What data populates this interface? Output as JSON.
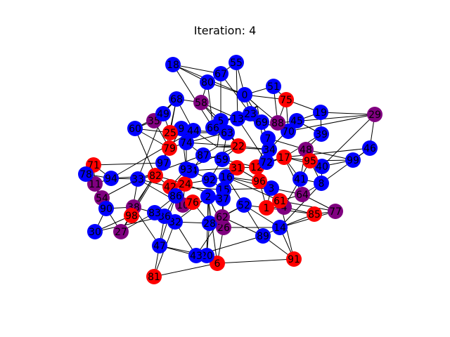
{
  "title": "Iteration: 4",
  "colors": {
    "blue": "#0000ff",
    "red": "#ff0000",
    "purple": "#800080",
    "edge": "#000000",
    "label": "#000000"
  },
  "nodes": [
    {
      "id": "0",
      "color": "blue"
    },
    {
      "id": "1",
      "color": "red"
    },
    {
      "id": "2",
      "color": "blue"
    },
    {
      "id": "3",
      "color": "blue"
    },
    {
      "id": "4",
      "color": "purple"
    },
    {
      "id": "5",
      "color": "blue"
    },
    {
      "id": "6",
      "color": "red"
    },
    {
      "id": "7",
      "color": "blue"
    },
    {
      "id": "8",
      "color": "blue"
    },
    {
      "id": "9",
      "color": "blue"
    },
    {
      "id": "10",
      "color": "purple"
    },
    {
      "id": "11",
      "color": "purple"
    },
    {
      "id": "12",
      "color": "red"
    },
    {
      "id": "13",
      "color": "blue"
    },
    {
      "id": "14",
      "color": "blue"
    },
    {
      "id": "15",
      "color": "blue"
    },
    {
      "id": "16",
      "color": "blue"
    },
    {
      "id": "17",
      "color": "red"
    },
    {
      "id": "18",
      "color": "blue"
    },
    {
      "id": "19",
      "color": "blue"
    },
    {
      "id": "20",
      "color": "blue"
    },
    {
      "id": "22",
      "color": "red"
    },
    {
      "id": "23",
      "color": "blue"
    },
    {
      "id": "24",
      "color": "red"
    },
    {
      "id": "25",
      "color": "red"
    },
    {
      "id": "26",
      "color": "purple"
    },
    {
      "id": "27",
      "color": "purple"
    },
    {
      "id": "28",
      "color": "blue"
    },
    {
      "id": "29",
      "color": "purple"
    },
    {
      "id": "30",
      "color": "blue"
    },
    {
      "id": "31",
      "color": "red"
    },
    {
      "id": "32",
      "color": "blue"
    },
    {
      "id": "33",
      "color": "blue"
    },
    {
      "id": "34",
      "color": "blue"
    },
    {
      "id": "35",
      "color": "purple"
    },
    {
      "id": "36",
      "color": "blue"
    },
    {
      "id": "37",
      "color": "blue"
    },
    {
      "id": "38",
      "color": "purple"
    },
    {
      "id": "39",
      "color": "blue"
    },
    {
      "id": "40",
      "color": "blue"
    },
    {
      "id": "41",
      "color": "blue"
    },
    {
      "id": "42",
      "color": "red"
    },
    {
      "id": "43",
      "color": "blue"
    },
    {
      "id": "44",
      "color": "blue"
    },
    {
      "id": "45",
      "color": "blue"
    },
    {
      "id": "46",
      "color": "blue"
    },
    {
      "id": "47",
      "color": "blue"
    },
    {
      "id": "48",
      "color": "purple"
    },
    {
      "id": "49",
      "color": "blue"
    },
    {
      "id": "51",
      "color": "blue"
    },
    {
      "id": "52",
      "color": "blue"
    },
    {
      "id": "54",
      "color": "purple"
    },
    {
      "id": "55",
      "color": "blue"
    },
    {
      "id": "58",
      "color": "purple"
    },
    {
      "id": "59",
      "color": "blue"
    },
    {
      "id": "60",
      "color": "blue"
    },
    {
      "id": "61",
      "color": "red"
    },
    {
      "id": "62",
      "color": "purple"
    },
    {
      "id": "63",
      "color": "blue"
    },
    {
      "id": "64",
      "color": "purple"
    },
    {
      "id": "66",
      "color": "blue"
    },
    {
      "id": "67",
      "color": "blue"
    },
    {
      "id": "68",
      "color": "blue"
    },
    {
      "id": "69",
      "color": "blue"
    },
    {
      "id": "70",
      "color": "blue"
    },
    {
      "id": "71",
      "color": "red"
    },
    {
      "id": "72",
      "color": "blue"
    },
    {
      "id": "74",
      "color": "blue"
    },
    {
      "id": "75",
      "color": "red"
    },
    {
      "id": "76",
      "color": "red"
    },
    {
      "id": "77",
      "color": "purple"
    },
    {
      "id": "78",
      "color": "blue"
    },
    {
      "id": "79",
      "color": "red"
    },
    {
      "id": "80",
      "color": "blue"
    },
    {
      "id": "81",
      "color": "red"
    },
    {
      "id": "82",
      "color": "red"
    },
    {
      "id": "83",
      "color": "blue"
    },
    {
      "id": "84",
      "color": "blue"
    },
    {
      "id": "85",
      "color": "red"
    },
    {
      "id": "86",
      "color": "blue"
    },
    {
      "id": "87",
      "color": "blue"
    },
    {
      "id": "88",
      "color": "purple"
    },
    {
      "id": "89",
      "color": "blue"
    },
    {
      "id": "90",
      "color": "blue"
    },
    {
      "id": "91",
      "color": "red"
    },
    {
      "id": "92",
      "color": "blue"
    },
    {
      "id": "93",
      "color": "blue"
    },
    {
      "id": "94",
      "color": "blue"
    },
    {
      "id": "95",
      "color": "red"
    },
    {
      "id": "96",
      "color": "red"
    },
    {
      "id": "97",
      "color": "blue"
    },
    {
      "id": "98",
      "color": "red"
    },
    {
      "id": "99",
      "color": "blue"
    }
  ],
  "edges": [
    [
      "18",
      "67"
    ],
    [
      "18",
      "80"
    ],
    [
      "18",
      "66"
    ],
    [
      "55",
      "67"
    ],
    [
      "55",
      "0"
    ],
    [
      "67",
      "80"
    ],
    [
      "67",
      "23"
    ],
    [
      "80",
      "58"
    ],
    [
      "80",
      "66"
    ],
    [
      "80",
      "0"
    ],
    [
      "51",
      "0"
    ],
    [
      "51",
      "75"
    ],
    [
      "0",
      "23"
    ],
    [
      "0",
      "69"
    ],
    [
      "0",
      "75"
    ],
    [
      "75",
      "19"
    ],
    [
      "75",
      "88"
    ],
    [
      "19",
      "29"
    ],
    [
      "19",
      "39"
    ],
    [
      "29",
      "46"
    ],
    [
      "29",
      "70"
    ],
    [
      "29",
      "40"
    ],
    [
      "46",
      "99"
    ],
    [
      "99",
      "40"
    ],
    [
      "99",
      "95"
    ],
    [
      "46",
      "8"
    ],
    [
      "40",
      "8"
    ],
    [
      "8",
      "64"
    ],
    [
      "8",
      "14"
    ],
    [
      "77",
      "64"
    ],
    [
      "77",
      "85"
    ],
    [
      "77",
      "14"
    ],
    [
      "85",
      "1"
    ],
    [
      "85",
      "14"
    ],
    [
      "14",
      "89"
    ],
    [
      "89",
      "52"
    ],
    [
      "89",
      "43"
    ],
    [
      "91",
      "14"
    ],
    [
      "91",
      "6"
    ],
    [
      "91",
      "61"
    ],
    [
      "6",
      "2"
    ],
    [
      "6",
      "20"
    ],
    [
      "6",
      "81"
    ],
    [
      "6",
      "43"
    ],
    [
      "6",
      "26"
    ],
    [
      "20",
      "43"
    ],
    [
      "20",
      "28"
    ],
    [
      "43",
      "47"
    ],
    [
      "43",
      "32"
    ],
    [
      "81",
      "32"
    ],
    [
      "47",
      "86"
    ],
    [
      "27",
      "83"
    ],
    [
      "27",
      "9"
    ],
    [
      "30",
      "90"
    ],
    [
      "30",
      "36"
    ],
    [
      "90",
      "54"
    ],
    [
      "54",
      "11"
    ],
    [
      "11",
      "71"
    ],
    [
      "71",
      "78"
    ],
    [
      "78",
      "94"
    ],
    [
      "94",
      "33"
    ],
    [
      "33",
      "82"
    ],
    [
      "82",
      "42"
    ],
    [
      "42",
      "24"
    ],
    [
      "24",
      "92"
    ],
    [
      "92",
      "15"
    ],
    [
      "15",
      "37"
    ],
    [
      "37",
      "26"
    ],
    [
      "26",
      "62"
    ],
    [
      "62",
      "52"
    ],
    [
      "52",
      "16"
    ],
    [
      "16",
      "3"
    ],
    [
      "3",
      "1"
    ],
    [
      "1",
      "61"
    ],
    [
      "61",
      "4"
    ],
    [
      "4",
      "41"
    ],
    [
      "41",
      "48"
    ],
    [
      "48",
      "95"
    ],
    [
      "95",
      "17"
    ],
    [
      "17",
      "72"
    ],
    [
      "72",
      "12"
    ],
    [
      "12",
      "31"
    ],
    [
      "31",
      "59"
    ],
    [
      "59",
      "22"
    ],
    [
      "22",
      "34"
    ],
    [
      "34",
      "72"
    ],
    [
      "72",
      "7"
    ],
    [
      "7",
      "69"
    ],
    [
      "69",
      "23"
    ],
    [
      "23",
      "13"
    ],
    [
      "13",
      "5"
    ],
    [
      "5",
      "66"
    ],
    [
      "66",
      "63"
    ],
    [
      "63",
      "44"
    ],
    [
      "44",
      "94"
    ],
    [
      "44",
      "9"
    ],
    [
      "9",
      "25"
    ],
    [
      "25",
      "79"
    ],
    [
      "79",
      "74"
    ],
    [
      "74",
      "87"
    ],
    [
      "87",
      "59"
    ],
    [
      "87",
      "53"
    ],
    [
      "60",
      "25"
    ],
    [
      "60",
      "49"
    ],
    [
      "49",
      "35"
    ],
    [
      "35",
      "79"
    ],
    [
      "68",
      "58"
    ],
    [
      "68",
      "25"
    ],
    [
      "68",
      "44"
    ],
    [
      "58",
      "5"
    ],
    [
      "97",
      "38"
    ],
    [
      "97",
      "68"
    ],
    [
      "97",
      "98"
    ],
    [
      "98",
      "38"
    ],
    [
      "38",
      "83"
    ],
    [
      "83",
      "86"
    ],
    [
      "86",
      "10"
    ],
    [
      "10",
      "76"
    ],
    [
      "76",
      "28"
    ],
    [
      "28",
      "62"
    ],
    [
      "76",
      "37"
    ],
    [
      "10",
      "24"
    ],
    [
      "24",
      "84"
    ],
    [
      "84",
      "93"
    ],
    [
      "93",
      "74"
    ],
    [
      "42",
      "86"
    ],
    [
      "82",
      "97"
    ],
    [
      "33",
      "98"
    ],
    [
      "33",
      "10"
    ],
    [
      "78",
      "54"
    ],
    [
      "71",
      "97"
    ],
    [
      "11",
      "94"
    ],
    [
      "36",
      "32"
    ],
    [
      "36",
      "86"
    ],
    [
      "32",
      "2"
    ],
    [
      "2",
      "28"
    ],
    [
      "92",
      "16"
    ],
    [
      "16",
      "96"
    ],
    [
      "96",
      "12"
    ],
    [
      "96",
      "3"
    ],
    [
      "3",
      "64"
    ],
    [
      "64",
      "17"
    ],
    [
      "41",
      "17"
    ],
    [
      "41",
      "8"
    ],
    [
      "39",
      "17"
    ],
    [
      "39",
      "45"
    ],
    [
      "45",
      "70"
    ],
    [
      "70",
      "69"
    ],
    [
      "70",
      "88"
    ],
    [
      "88",
      "57"
    ],
    [
      "57",
      "23"
    ],
    [
      "57",
      "0"
    ],
    [
      "45",
      "34"
    ],
    [
      "84",
      "92"
    ],
    [
      "84",
      "31"
    ],
    [
      "31",
      "96"
    ],
    [
      "31",
      "15"
    ],
    [
      "22",
      "63"
    ],
    [
      "22",
      "74"
    ],
    [
      "53",
      "22"
    ],
    [
      "53",
      "34"
    ],
    [
      "13",
      "72"
    ],
    [
      "7",
      "12"
    ],
    [
      "12",
      "4"
    ],
    [
      "4",
      "1"
    ],
    [
      "1",
      "52"
    ],
    [
      "61",
      "64"
    ],
    [
      "62",
      "89"
    ],
    [
      "26",
      "14"
    ],
    [
      "26",
      "2"
    ],
    [
      "63",
      "25"
    ],
    [
      "63",
      "59"
    ],
    [
      "93",
      "42"
    ],
    [
      "93",
      "22"
    ],
    [
      "74",
      "63"
    ],
    [
      "90",
      "38"
    ],
    [
      "90",
      "27"
    ],
    [
      "38",
      "47"
    ],
    [
      "9",
      "93"
    ],
    [
      "49",
      "33"
    ],
    [
      "35",
      "60"
    ],
    [
      "66",
      "57"
    ],
    [
      "95",
      "41"
    ],
    [
      "40",
      "17"
    ],
    [
      "69",
      "7"
    ],
    [
      "75",
      "70"
    ],
    [
      "19",
      "45"
    ],
    [
      "58",
      "63"
    ],
    [
      "55",
      "13"
    ],
    [
      "51",
      "88"
    ],
    [
      "67",
      "5"
    ],
    [
      "18",
      "0"
    ],
    [
      "60",
      "82"
    ],
    [
      "98",
      "27"
    ],
    [
      "83",
      "36"
    ],
    [
      "81",
      "36"
    ],
    [
      "47",
      "20"
    ],
    [
      "20",
      "2"
    ],
    [
      "52",
      "28"
    ],
    [
      "37",
      "62"
    ],
    [
      "15",
      "3"
    ],
    [
      "16",
      "61"
    ],
    [
      "42",
      "15"
    ],
    [
      "79",
      "82"
    ],
    [
      "44",
      "53"
    ],
    [
      "5",
      "53"
    ],
    [
      "13",
      "69"
    ],
    [
      "34",
      "12"
    ],
    [
      "12",
      "17"
    ],
    [
      "7",
      "48"
    ],
    [
      "48",
      "39"
    ],
    [
      "95",
      "8"
    ],
    [
      "99",
      "48"
    ],
    [
      "46",
      "17"
    ],
    [
      "29",
      "88"
    ],
    [
      "24",
      "37"
    ],
    [
      "92",
      "59"
    ],
    [
      "59",
      "12"
    ],
    [
      "31",
      "3"
    ],
    [
      "96",
      "1"
    ],
    [
      "89",
      "91"
    ],
    [
      "77",
      "61"
    ],
    [
      "85",
      "4"
    ],
    [
      "14",
      "52"
    ],
    [
      "28",
      "26"
    ],
    [
      "43",
      "62"
    ],
    [
      "32",
      "28"
    ],
    [
      "30",
      "98"
    ],
    [
      "90",
      "11"
    ],
    [
      "54",
      "33"
    ],
    [
      "71",
      "94"
    ],
    [
      "78",
      "11"
    ],
    [
      "94",
      "82"
    ],
    [
      "33",
      "42"
    ],
    [
      "82",
      "24"
    ],
    [
      "87",
      "84"
    ],
    [
      "87",
      "33"
    ],
    [
      "25",
      "44"
    ],
    [
      "9",
      "74"
    ],
    [
      "35",
      "68"
    ],
    [
      "49",
      "25"
    ],
    [
      "60",
      "79"
    ],
    [
      "5",
      "22"
    ],
    [
      "23",
      "5"
    ],
    [
      "57",
      "72"
    ],
    [
      "0",
      "57"
    ],
    [
      "58",
      "13"
    ],
    [
      "68",
      "49"
    ]
  ]
}
